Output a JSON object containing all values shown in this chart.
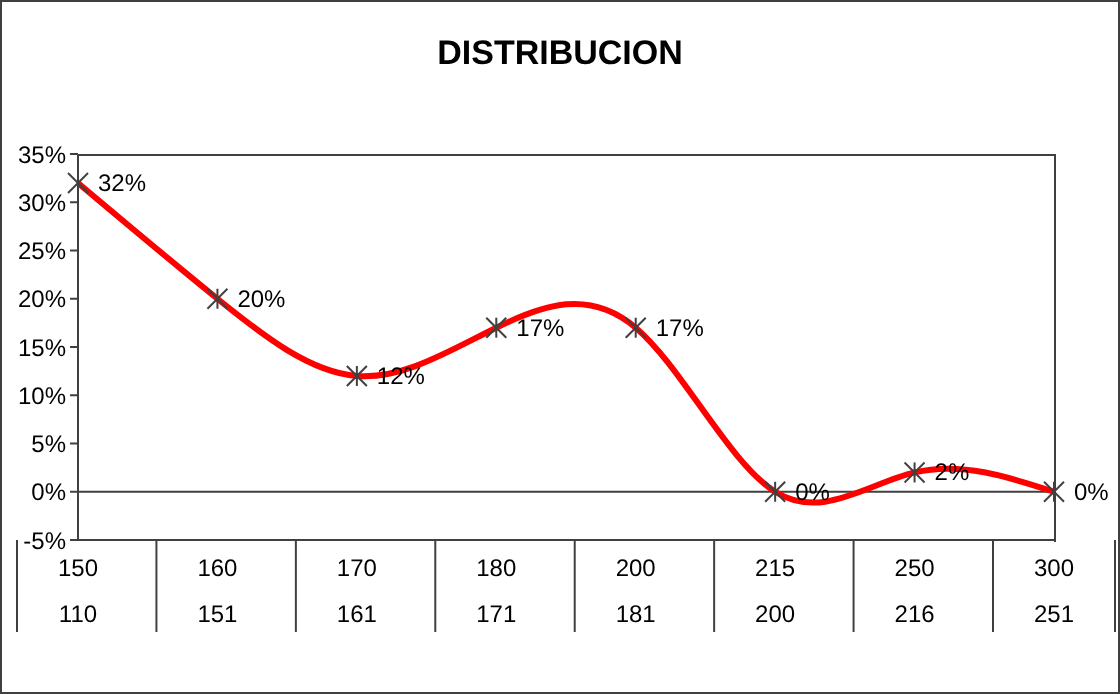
{
  "chart_data": {
    "type": "line",
    "title": "DISTRIBUCION",
    "categories": [
      "150\n110",
      "160\n151",
      "170\n161",
      "180\n171",
      "200\n181",
      "215\n200",
      "250\n216",
      "300\n251"
    ],
    "series": [
      {
        "color": "#ff0000",
        "values": [
          32,
          20,
          12,
          17,
          17,
          0,
          2,
          0
        ],
        "value_labels": [
          "32%",
          "20%",
          "12%",
          "17%",
          "17%",
          "0%",
          "2%",
          "0%"
        ]
      }
    ],
    "ylim": [
      -5,
      35
    ],
    "yticks": [
      {
        "value": -5,
        "label": "-5%"
      },
      {
        "value": 0,
        "label": "0%"
      },
      {
        "value": 5,
        "label": "5%"
      },
      {
        "value": 10,
        "label": "10%"
      },
      {
        "value": 15,
        "label": "15%"
      },
      {
        "value": 20,
        "label": "20%"
      },
      {
        "value": 25,
        "label": "25%"
      },
      {
        "value": 30,
        "label": "30%"
      },
      {
        "value": 35,
        "label": "35%"
      }
    ],
    "marker": "cross",
    "line_style": "solid"
  }
}
